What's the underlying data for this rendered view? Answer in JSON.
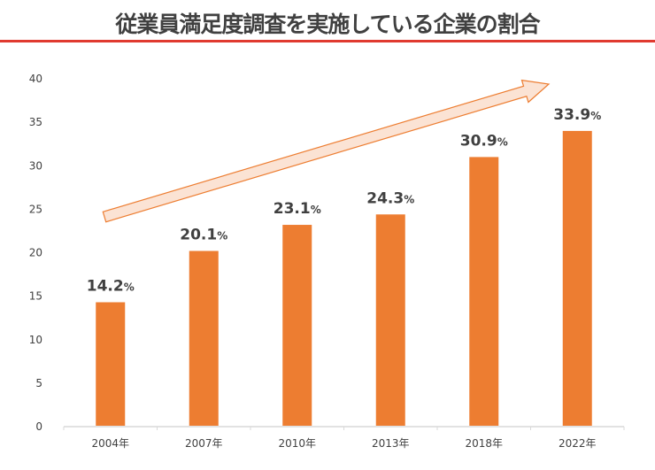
{
  "title": "従業員満足度調査を実施している企業の割合",
  "chart_data": {
    "type": "bar",
    "categories": [
      "2004年",
      "2007年",
      "2010年",
      "2013年",
      "2018年",
      "2022年"
    ],
    "values": [
      14.2,
      20.1,
      23.1,
      24.3,
      30.9,
      33.9
    ],
    "data_labels": [
      "14.2",
      "20.1",
      "23.1",
      "24.3",
      "30.9",
      "33.9"
    ],
    "label_unit": "%",
    "ylim": [
      0,
      40
    ],
    "yticks": [
      0,
      5,
      10,
      15,
      20,
      25,
      30,
      35,
      40
    ],
    "grid": false,
    "legend": "none",
    "annotation": "upward trend arrow",
    "colors": {
      "bar": "#ed7d31",
      "arrow_fill": "#fbe3d4",
      "arrow_stroke": "#ed7d31",
      "title_rule": "#e03a2f"
    }
  }
}
